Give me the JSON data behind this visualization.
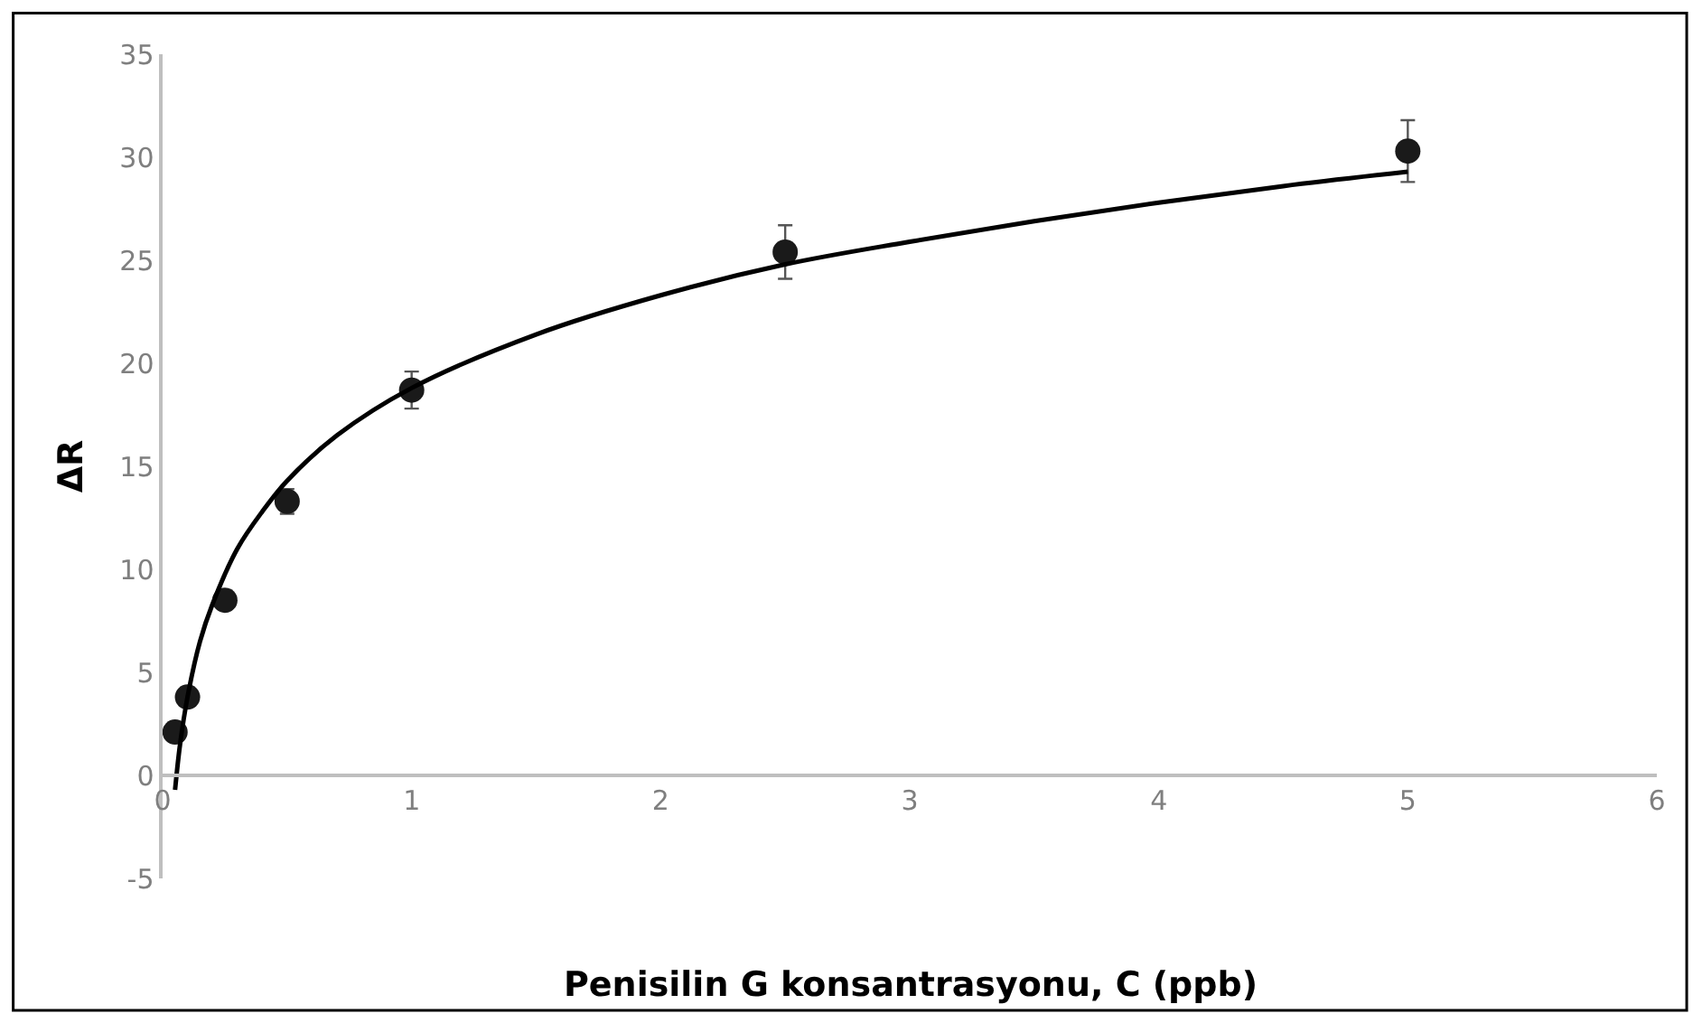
{
  "chart_data": {
    "type": "scatter",
    "xlabel": "Penisilin G konsantrasyonu, C (ppb)",
    "ylabel": "ΔR",
    "xlim": [
      0,
      6
    ],
    "ylim": [
      -5,
      35
    ],
    "xticks": [
      0,
      1,
      2,
      3,
      4,
      5,
      6
    ],
    "yticks": [
      -5,
      0,
      5,
      10,
      15,
      20,
      25,
      30,
      35
    ],
    "legend": false,
    "marker": "circle",
    "series": [
      {
        "color": "#1a1a1a",
        "x": [
          0.05,
          0.1,
          0.25,
          0.5,
          1,
          2.5,
          5
        ],
        "values": [
          2.1,
          3.8,
          8.5,
          13.3,
          18.7,
          25.4,
          30.3
        ],
        "errors": [
          null,
          null,
          null,
          0.6,
          0.9,
          1.3,
          1.5
        ]
      },
      {
        "type": "line",
        "color": "#000000",
        "marker": "none",
        "line_style": "solid",
        "x": [
          0.05,
          0.07,
          0.1,
          0.15,
          0.2,
          0.3,
          0.4,
          0.5,
          0.7,
          1,
          1.5,
          2,
          2.5,
          3,
          3.5,
          4,
          4.5,
          5
        ],
        "values": [
          -0.7,
          1.5,
          3.8,
          6.5,
          8.3,
          11.0,
          12.8,
          14.3,
          16.5,
          18.8,
          21.4,
          23.3,
          24.8,
          25.9,
          26.9,
          27.8,
          28.6,
          29.3
        ]
      }
    ]
  }
}
